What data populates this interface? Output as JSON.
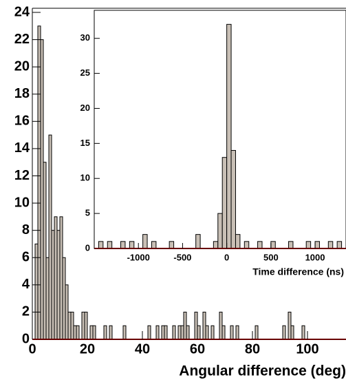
{
  "chart_data": [
    {
      "type": "histogram",
      "xlabel": "Angular difference (deg)",
      "color": "#c9c0b6",
      "line_color": "#d00000",
      "bins": [
        0,
        1,
        2,
        3,
        4,
        5,
        6,
        7,
        8,
        9,
        10,
        11,
        12,
        13,
        14,
        15,
        16,
        17,
        18,
        19,
        20,
        21,
        22,
        23,
        24,
        25,
        26,
        27,
        28,
        29,
        30,
        31,
        32,
        33,
        34,
        35,
        36,
        37,
        38,
        39,
        40,
        41,
        42,
        43,
        44,
        45,
        46,
        47,
        48,
        49,
        50,
        51,
        52,
        53,
        54,
        55,
        56,
        57,
        58,
        59,
        60,
        61,
        62,
        63,
        64,
        65,
        66,
        67,
        68,
        69,
        70,
        71,
        72,
        73,
        74,
        75,
        76,
        77,
        78,
        79,
        80,
        81,
        82,
        83,
        84,
        85,
        86,
        87,
        88,
        89,
        90,
        91,
        92,
        93,
        94,
        95,
        96,
        97,
        98,
        99,
        100,
        101,
        102,
        103,
        104
      ],
      "counts": [
        0,
        7,
        23,
        22,
        13,
        6,
        15,
        8,
        9,
        8,
        9,
        6,
        4,
        2,
        2,
        1,
        1,
        0,
        2,
        2,
        0,
        1,
        1,
        0,
        0,
        0,
        1,
        0,
        1,
        0,
        0,
        0,
        0,
        1,
        0,
        0,
        0,
        0,
        0,
        0,
        0,
        0,
        1,
        0,
        0,
        1,
        0,
        1,
        1,
        0,
        0,
        1,
        0,
        1,
        1,
        2,
        1,
        0,
        0,
        2,
        1,
        0,
        2,
        1,
        0,
        1,
        0,
        0,
        2,
        1,
        0,
        0,
        1,
        0,
        1,
        0,
        0,
        0,
        0,
        0,
        0,
        1,
        0,
        0,
        0,
        0,
        0,
        0,
        0,
        0,
        0,
        1,
        0,
        2,
        1,
        0,
        0,
        0,
        1,
        0,
        0,
        0,
        0,
        0
      ],
      "xlim": [
        0,
        114
      ],
      "ylim": [
        0,
        24
      ],
      "xticks": [
        0,
        20,
        40,
        60,
        80,
        100
      ],
      "yticks": [
        0,
        2,
        4,
        6,
        8,
        10,
        12,
        14,
        16,
        18,
        20,
        22,
        24
      ]
    },
    {
      "type": "histogram",
      "xlabel": "Time difference (ns)",
      "color": "#c9c0b6",
      "line_color": "#d00000",
      "bins": [
        -1500,
        -1450,
        -1400,
        -1350,
        -1300,
        -1250,
        -1200,
        -1150,
        -1100,
        -1050,
        -1000,
        -950,
        -900,
        -850,
        -800,
        -750,
        -700,
        -650,
        -600,
        -550,
        -500,
        -450,
        -400,
        -350,
        -300,
        -250,
        -200,
        -150,
        -100,
        -50,
        0,
        50,
        100,
        150,
        200,
        250,
        300,
        350,
        400,
        450,
        500,
        550,
        600,
        650,
        700,
        750,
        800,
        850,
        900,
        950,
        1000,
        1050,
        1100,
        1150,
        1200,
        1250,
        1300,
        1350
      ],
      "counts": [
        0,
        1,
        0,
        1,
        0,
        0,
        1,
        0,
        1,
        0,
        0,
        2,
        0,
        1,
        0,
        0,
        0,
        1,
        0,
        0,
        0,
        0,
        0,
        2,
        0,
        0,
        0,
        1,
        5,
        13,
        32,
        14,
        2,
        0,
        1,
        0,
        0,
        1,
        0,
        0,
        1,
        0,
        0,
        0,
        1,
        0,
        0,
        0,
        1,
        0,
        1,
        0,
        0,
        1,
        0,
        1,
        0
      ],
      "xlim": [
        -1500,
        1350
      ],
      "ylim": [
        0,
        34
      ],
      "xticks": [
        -1000,
        -500,
        0,
        500,
        1000
      ],
      "yticks": [
        0,
        5,
        10,
        15,
        20,
        25,
        30
      ]
    }
  ]
}
